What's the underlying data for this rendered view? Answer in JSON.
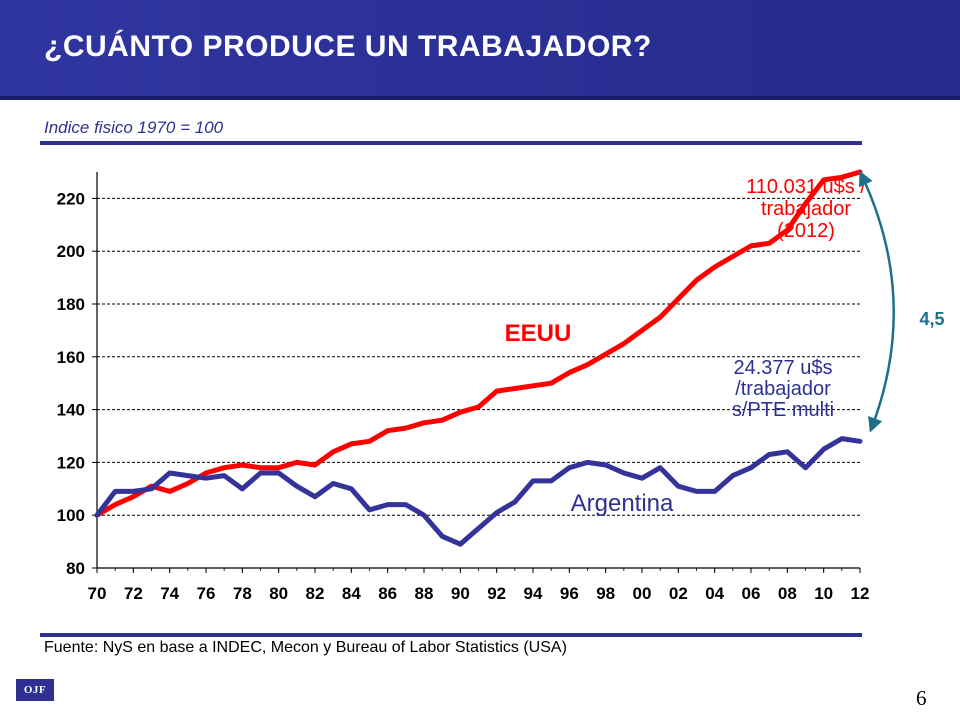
{
  "header": {
    "title": "¿CUÁNTO PRODUCE UN TRABAJADOR?"
  },
  "subtitle": "Indice fisico 1970 = 100",
  "source": "Fuente: NyS en base a INDEC, Mecon y Bureau of Labor Statistics (USA)",
  "logo": "OJF",
  "page_number": "6",
  "colors": {
    "header_bg": "#2e3192",
    "eeuu_line": "#ff0000",
    "argentina_line": "#333399",
    "ratio_arrow": "#1f6f8b"
  },
  "chart_data": {
    "type": "line",
    "title": "",
    "xlabel": "",
    "ylabel": "Indice fisico 1970 = 100",
    "x": [
      1970,
      1971,
      1972,
      1973,
      1974,
      1975,
      1976,
      1977,
      1978,
      1979,
      1980,
      1981,
      1982,
      1983,
      1984,
      1985,
      1986,
      1987,
      1988,
      1989,
      1990,
      1991,
      1992,
      1993,
      1994,
      1995,
      1996,
      1997,
      1998,
      1999,
      2000,
      2001,
      2002,
      2003,
      2004,
      2005,
      2006,
      2007,
      2008,
      2009,
      2010,
      2011,
      2012
    ],
    "x_tick_labels": [
      "70",
      "72",
      "74",
      "76",
      "78",
      "80",
      "82",
      "84",
      "86",
      "88",
      "90",
      "92",
      "94",
      "96",
      "98",
      "00",
      "02",
      "04",
      "06",
      "08",
      "10",
      "12"
    ],
    "ylim": [
      80,
      230
    ],
    "y_ticks": [
      80,
      100,
      120,
      140,
      160,
      180,
      200,
      220
    ],
    "grid": "horizontal dashed",
    "series": [
      {
        "name": "EEUU",
        "color": "#ff0000",
        "values": [
          100,
          104,
          107,
          111,
          109,
          112,
          116,
          118,
          119,
          118,
          118,
          120,
          119,
          124,
          127,
          128,
          132,
          133,
          135,
          136,
          139,
          141,
          147,
          148,
          149,
          150,
          154,
          157,
          161,
          165,
          170,
          175,
          182,
          189,
          194,
          198,
          202,
          203,
          208,
          218,
          227,
          228,
          230
        ]
      },
      {
        "name": "Argentina",
        "color": "#333399",
        "values": [
          100,
          109,
          109,
          110,
          116,
          115,
          114,
          115,
          110,
          116,
          116,
          111,
          107,
          112,
          110,
          102,
          104,
          104,
          100,
          92,
          89,
          95,
          101,
          105,
          113,
          113,
          118,
          120,
          119,
          116,
          114,
          118,
          111,
          109,
          109,
          115,
          118,
          123,
          124,
          118,
          125,
          129,
          128
        ]
      }
    ],
    "annotations": {
      "eeuu_label": "EEUU",
      "eeuu_value": [
        "110.031 u$s /",
        "trabajador",
        "(2012)"
      ],
      "argentina_label": "Argentina",
      "argentina_value": [
        "24.377 u$s",
        "/trabajador",
        "s/PTE multi"
      ],
      "ratio": "4,5"
    }
  }
}
